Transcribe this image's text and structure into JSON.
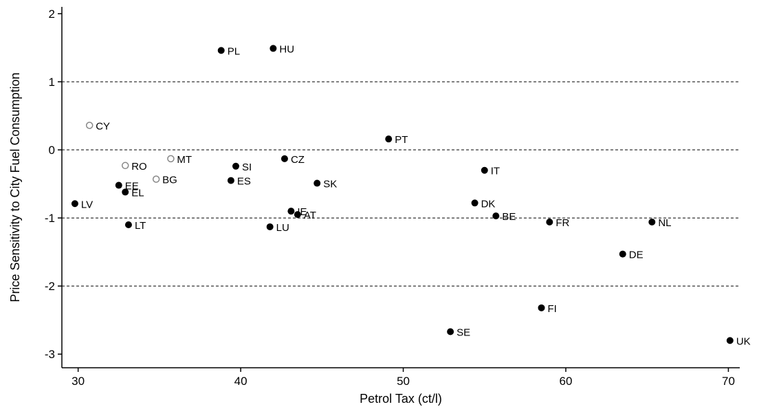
{
  "chart_data": {
    "type": "scatter",
    "xlabel": "Petrol Tax (ct/l)",
    "ylabel": "Price Sensitivity to City Fuel Consumption",
    "xlim": [
      29,
      70.7
    ],
    "ylim": [
      -3.2,
      2.1
    ],
    "xticks": [
      30,
      40,
      50,
      60,
      70
    ],
    "yticks": [
      -3,
      -2,
      -1,
      0,
      1,
      2
    ],
    "grid": {
      "horizontal_dashed_at": [
        1,
        0,
        -1,
        -2
      ]
    },
    "colors": {
      "filled": "#000000",
      "hollow": "#888888"
    },
    "points": [
      {
        "label": "PL",
        "x": 38.8,
        "y": 1.46,
        "style": "filled"
      },
      {
        "label": "HU",
        "x": 42.0,
        "y": 1.49,
        "style": "filled"
      },
      {
        "label": "CY",
        "x": 30.7,
        "y": 0.36,
        "style": "hollow"
      },
      {
        "label": "PT",
        "x": 49.1,
        "y": 0.16,
        "style": "filled"
      },
      {
        "label": "MT",
        "x": 35.7,
        "y": -0.13,
        "style": "hollow"
      },
      {
        "label": "CZ",
        "x": 42.7,
        "y": -0.13,
        "style": "filled"
      },
      {
        "label": "RO",
        "x": 32.9,
        "y": -0.23,
        "style": "hollow"
      },
      {
        "label": "SI",
        "x": 39.7,
        "y": -0.24,
        "style": "filled"
      },
      {
        "label": "IT",
        "x": 55.0,
        "y": -0.3,
        "style": "filled"
      },
      {
        "label": "BG",
        "x": 34.8,
        "y": -0.43,
        "style": "hollow"
      },
      {
        "label": "ES",
        "x": 39.4,
        "y": -0.45,
        "style": "filled"
      },
      {
        "label": "SK",
        "x": 44.7,
        "y": -0.49,
        "style": "filled"
      },
      {
        "label": "EE",
        "x": 32.5,
        "y": -0.52,
        "style": "filled"
      },
      {
        "label": "EL",
        "x": 32.9,
        "y": -0.62,
        "style": "filled"
      },
      {
        "label": "LV",
        "x": 29.8,
        "y": -0.79,
        "style": "filled"
      },
      {
        "label": "DK",
        "x": 54.4,
        "y": -0.78,
        "style": "filled"
      },
      {
        "label": "IE",
        "x": 43.1,
        "y": -0.9,
        "style": "filled"
      },
      {
        "label": "AT",
        "x": 43.5,
        "y": -0.95,
        "style": "filled"
      },
      {
        "label": "BE",
        "x": 55.7,
        "y": -0.97,
        "style": "filled"
      },
      {
        "label": "FR",
        "x": 59.0,
        "y": -1.06,
        "style": "filled"
      },
      {
        "label": "NL",
        "x": 65.3,
        "y": -1.06,
        "style": "filled"
      },
      {
        "label": "LT",
        "x": 33.1,
        "y": -1.1,
        "style": "filled"
      },
      {
        "label": "LU",
        "x": 41.8,
        "y": -1.13,
        "style": "filled"
      },
      {
        "label": "DE",
        "x": 63.5,
        "y": -1.53,
        "style": "filled"
      },
      {
        "label": "FI",
        "x": 58.5,
        "y": -2.32,
        "style": "filled"
      },
      {
        "label": "SE",
        "x": 52.9,
        "y": -2.67,
        "style": "filled"
      },
      {
        "label": "UK",
        "x": 70.1,
        "y": -2.8,
        "style": "filled"
      }
    ]
  }
}
